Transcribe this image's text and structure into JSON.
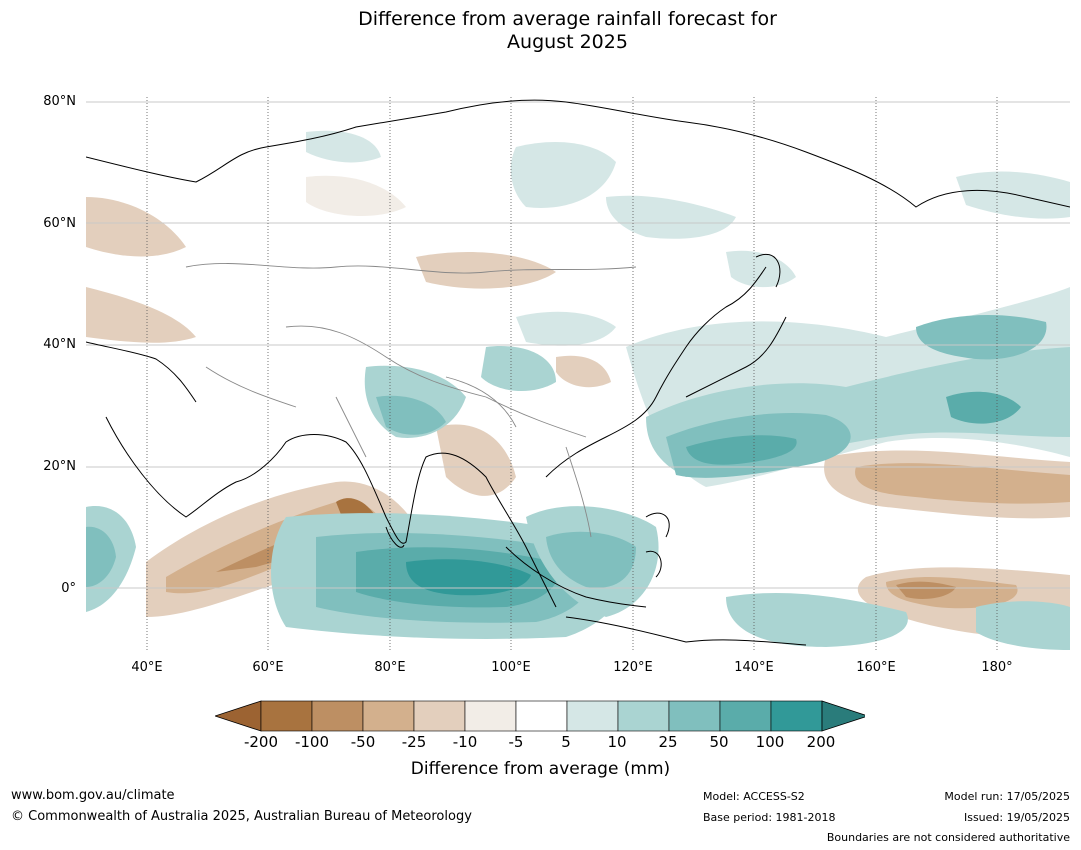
{
  "title_line1": "Difference from average rainfall forecast for",
  "title_line2": "August 2025",
  "lat_labels": [
    "80°N",
    "60°N",
    "40°N",
    "20°N",
    "0°"
  ],
  "lon_labels": [
    "40°E",
    "60°E",
    "80°E",
    "100°E",
    "120°E",
    "140°E",
    "160°E",
    "180°"
  ],
  "legend": {
    "ticks": [
      "-200",
      "-100",
      "-50",
      "-25",
      "-10",
      "-5",
      "5",
      "10",
      "25",
      "50",
      "100",
      "200"
    ],
    "colors": [
      "#9c6332",
      "#a8733f",
      "#bd8f63",
      "#d3b08d",
      "#e3cfbd",
      "#f2ede7",
      "#ffffff",
      "#d5e7e6",
      "#aad4d2",
      "#80bfbe",
      "#5aacaa",
      "#319998",
      "#2a7c7b"
    ],
    "label": "Difference from average (mm)"
  },
  "footer": {
    "url": "www.bom.gov.au/climate",
    "copyright": "© Commonwealth of Australia 2025, Australian Bureau of Meteorology",
    "model": "Model: ACCESS-S2",
    "base_period": "Base period: 1981-2018",
    "model_run": "Model run: 17/05/2025",
    "issued": "Issued: 19/05/2025",
    "disclaimer": "Boundaries are not considered authoritative"
  }
}
